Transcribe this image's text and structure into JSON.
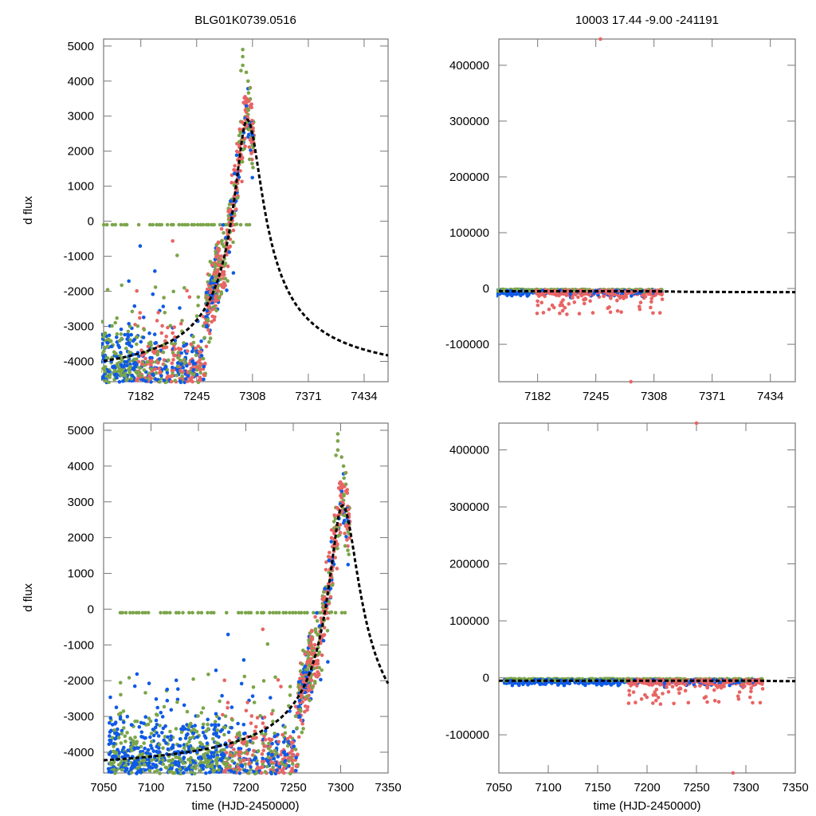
{
  "colors": {
    "series_a": "#7ba54a",
    "series_b": "#0f5ae6",
    "series_c": "#e86464",
    "fit": "#000000",
    "frame": "#777777"
  },
  "chart_data": [
    {
      "id": "top-left",
      "type": "scatter",
      "title": "BLG01K0739.0516",
      "xlabel": "",
      "ylabel": "d flux",
      "xlim": [
        7140,
        7461
      ],
      "ylim": [
        -4580,
        5200
      ],
      "xticks": [
        7182,
        7245,
        7308,
        7371,
        7434
      ],
      "yticks": [
        5000,
        4000,
        3000,
        2000,
        1000,
        0,
        -1000,
        -2000,
        -3000,
        -4000
      ],
      "xtick_labels": [
        "7182",
        "7245",
        "7308",
        "7371",
        "7434"
      ],
      "ytick_labels": [
        "5000",
        "4000",
        "3000",
        "2000",
        "1000",
        "0",
        "-1000",
        "-2000",
        "-3000",
        "-4000"
      ],
      "fit": {
        "peak_t": 7302,
        "peak_flux": 2900,
        "base_flux": -4650,
        "rise_tau": 18,
        "fall_tau": 22
      },
      "series": [
        {
          "name": "green",
          "color_key": "series_a"
        },
        {
          "name": "blue",
          "color_key": "series_b"
        },
        {
          "name": "red",
          "color_key": "series_c"
        }
      ]
    },
    {
      "id": "top-right",
      "type": "scatter",
      "title": "10003  17.44  -9.00  -241191",
      "xlabel": "",
      "ylabel": "",
      "xlim": [
        7140,
        7461
      ],
      "ylim": [
        -167000,
        447000
      ],
      "xticks": [
        7182,
        7245,
        7308,
        7371,
        7434
      ],
      "yticks": [
        400000,
        300000,
        200000,
        100000,
        0,
        -100000
      ],
      "xtick_labels": [
        "7182",
        "7245",
        "7308",
        "7371",
        "7434"
      ],
      "ytick_labels": [
        "400000",
        "300000",
        "200000",
        "100000",
        "0",
        "-100000"
      ],
      "outliers": [
        {
          "x": 7250,
          "y": 447000,
          "series": "red"
        },
        {
          "x": 7283,
          "y": -167000,
          "series": "red"
        }
      ]
    },
    {
      "id": "bottom-left",
      "type": "scatter",
      "title": "",
      "xlabel": "time (HJD-2450000)",
      "ylabel": "d flux",
      "xlim": [
        7050,
        7350
      ],
      "ylim": [
        -4580,
        5200
      ],
      "xticks": [
        7050,
        7100,
        7150,
        7200,
        7250,
        7300,
        7350
      ],
      "yticks": [
        5000,
        4000,
        3000,
        2000,
        1000,
        0,
        -1000,
        -2000,
        -3000,
        -4000
      ],
      "xtick_labels": [
        "7050",
        "7100",
        "7150",
        "7200",
        "7250",
        "7300",
        "7350"
      ],
      "ytick_labels": [
        "5000",
        "4000",
        "3000",
        "2000",
        "1000",
        "0",
        "-1000",
        "-2000",
        "-3000",
        "-4000"
      ]
    },
    {
      "id": "bottom-right",
      "type": "scatter",
      "title": "",
      "xlabel": "time (HJD-2450000)",
      "ylabel": "",
      "xlim": [
        7050,
        7350
      ],
      "ylim": [
        -167000,
        447000
      ],
      "xticks": [
        7050,
        7100,
        7150,
        7200,
        7250,
        7300,
        7350
      ],
      "yticks": [
        400000,
        300000,
        200000,
        100000,
        0,
        -100000
      ],
      "xtick_labels": [
        "7050",
        "7100",
        "7150",
        "7200",
        "7250",
        "7300",
        "7350"
      ],
      "ytick_labels": [
        "400000",
        "300000",
        "200000",
        "100000",
        "0",
        "-100000"
      ],
      "outliers": [
        {
          "x": 7250,
          "y": 447000,
          "series": "red"
        },
        {
          "x": 7287,
          "y": -167000,
          "series": "red"
        }
      ]
    }
  ]
}
